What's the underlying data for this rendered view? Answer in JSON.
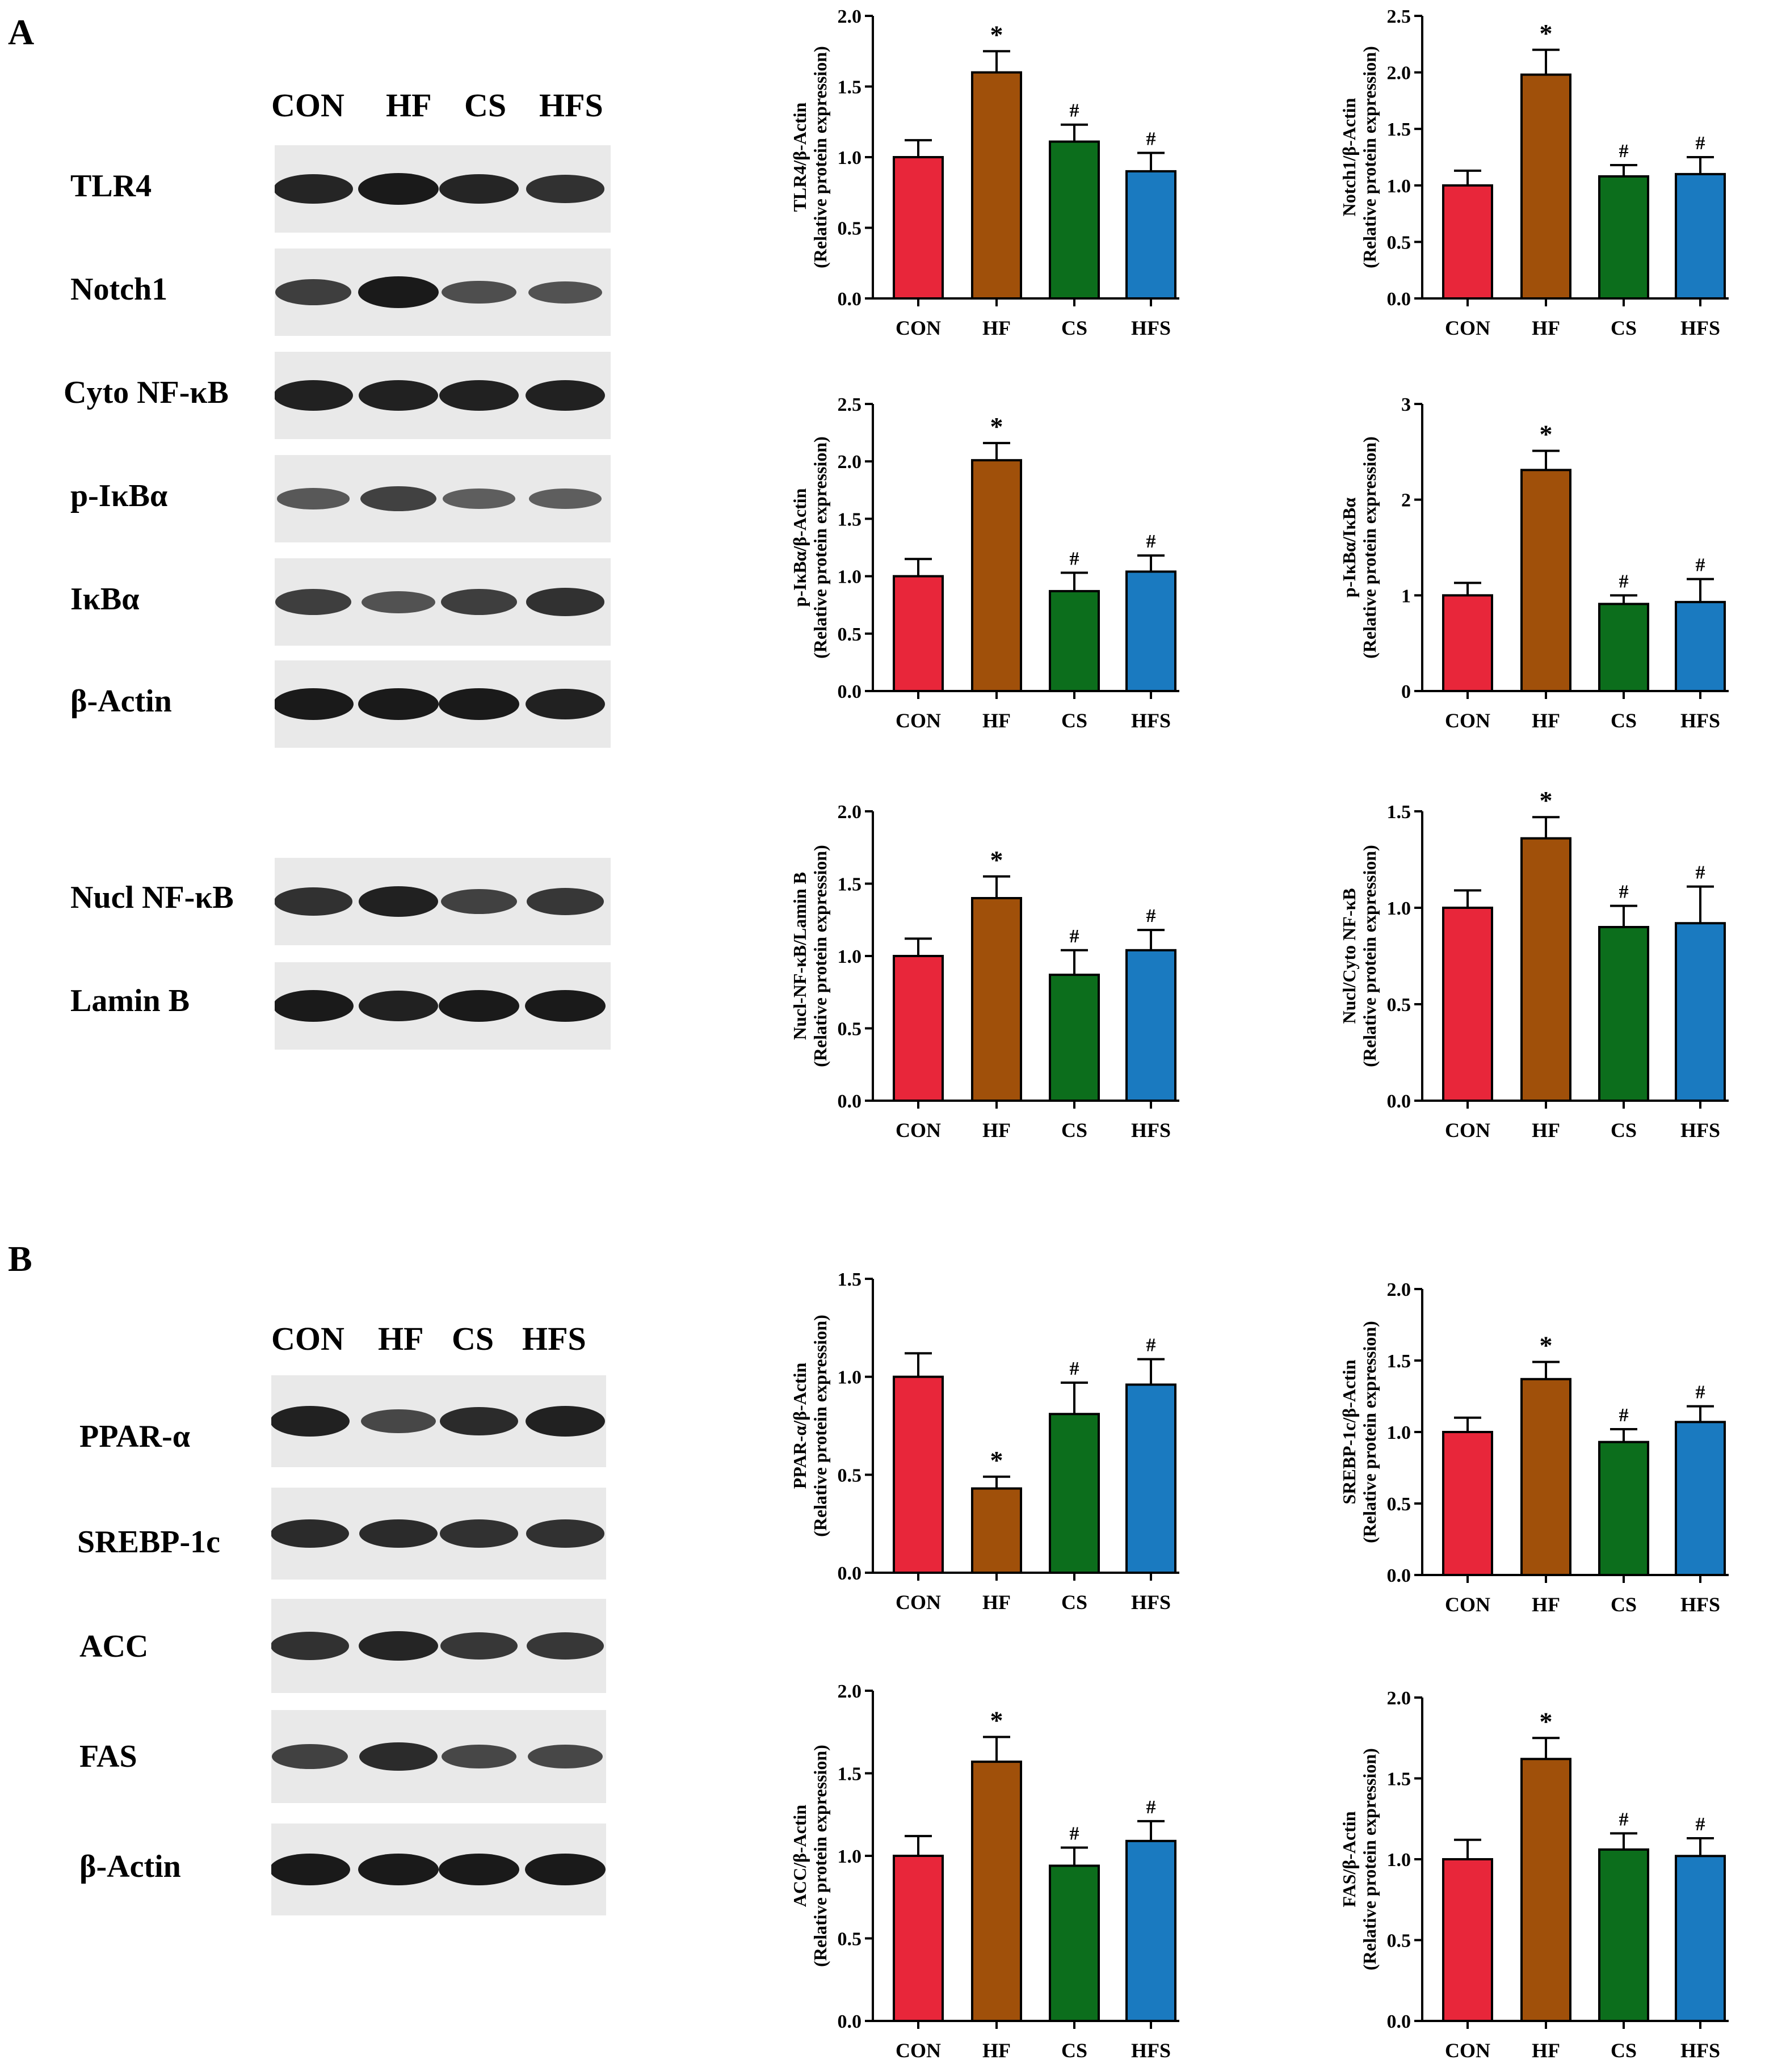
{
  "panels": {
    "a": "A",
    "b": "B"
  },
  "lanes": [
    "CON",
    "HF",
    "CS",
    "HFS"
  ],
  "panel_a": {
    "blot_rows": [
      "TLR4",
      "Notch1",
      "Cyto NF-κB",
      "p-IκBα",
      "IκBα",
      "β-Actin"
    ],
    "blot_rows_2": [
      "Nucl NF-κB",
      "Lamin B"
    ],
    "band_intensity": [
      [
        0.9,
        1.0,
        0.9,
        0.8
      ],
      [
        0.7,
        1.0,
        0.55,
        0.5
      ],
      [
        0.95,
        0.95,
        0.95,
        0.95
      ],
      [
        0.45,
        0.65,
        0.4,
        0.4
      ],
      [
        0.7,
        0.5,
        0.7,
        0.8
      ],
      [
        1.0,
        1.0,
        1.0,
        0.95
      ]
    ],
    "band_intensity_2": [
      [
        0.8,
        0.95,
        0.65,
        0.75
      ],
      [
        1.0,
        0.95,
        1.0,
        1.0
      ]
    ]
  },
  "panel_b": {
    "blot_rows": [
      "PPAR-α",
      "SREBP-1c",
      "ACC",
      "FAS",
      "β-Actin"
    ],
    "band_intensity": [
      [
        0.95,
        0.6,
        0.85,
        0.95
      ],
      [
        0.85,
        0.85,
        0.8,
        0.8
      ],
      [
        0.8,
        0.9,
        0.75,
        0.75
      ],
      [
        0.65,
        0.85,
        0.6,
        0.6
      ],
      [
        1.0,
        1.0,
        1.0,
        1.0
      ]
    ]
  },
  "colors": {
    "CON": "#e8263a",
    "HF": "#a0500a",
    "CS": "#0c6e1c",
    "HFS": "#1a7ac0"
  },
  "chart_data": [
    {
      "type": "bar",
      "ylabel": "TLR4/β-Actin",
      "ylabel2": "(Relative protein expression)",
      "categories": [
        "CON",
        "HF",
        "CS",
        "HFS"
      ],
      "values": [
        1.0,
        1.6,
        1.11,
        0.9
      ],
      "errors": [
        0.12,
        0.15,
        0.12,
        0.13
      ],
      "marks": [
        "",
        "*",
        "#",
        "#"
      ],
      "ylim": [
        0,
        2.0
      ],
      "yticks": [
        "0.0",
        "0.5",
        "1.0",
        "1.5",
        "2.0"
      ]
    },
    {
      "type": "bar",
      "ylabel": "Notch1/β-Actin",
      "ylabel2": "(Relative protein expression)",
      "categories": [
        "CON",
        "HF",
        "CS",
        "HFS"
      ],
      "values": [
        1.0,
        1.98,
        1.08,
        1.1
      ],
      "errors": [
        0.13,
        0.22,
        0.1,
        0.15
      ],
      "marks": [
        "",
        "*",
        "#",
        "#"
      ],
      "ylim": [
        0,
        2.5
      ],
      "yticks": [
        "0.0",
        "0.5",
        "1.0",
        "1.5",
        "2.0",
        "2.5"
      ]
    },
    {
      "type": "bar",
      "ylabel": "p-IκBα/β-Actin",
      "ylabel2": "(Relative protein expression)",
      "categories": [
        "CON",
        "HF",
        "CS",
        "HFS"
      ],
      "values": [
        1.0,
        2.01,
        0.87,
        1.04
      ],
      "errors": [
        0.15,
        0.15,
        0.16,
        0.14
      ],
      "marks": [
        "",
        "*",
        "#",
        "#"
      ],
      "ylim": [
        0,
        2.5
      ],
      "yticks": [
        "0.0",
        "0.5",
        "1.0",
        "1.5",
        "2.0",
        "2.5"
      ]
    },
    {
      "type": "bar",
      "ylabel": "p-IκBα/IκBα",
      "ylabel2": "(Relative protein expression)",
      "categories": [
        "CON",
        "HF",
        "CS",
        "HFS"
      ],
      "values": [
        1.0,
        2.31,
        0.91,
        0.93
      ],
      "errors": [
        0.13,
        0.2,
        0.09,
        0.24
      ],
      "marks": [
        "",
        "*",
        "#",
        "#"
      ],
      "ylim": [
        0,
        3
      ],
      "yticks": [
        "0",
        "1",
        "2",
        "3"
      ]
    },
    {
      "type": "bar",
      "ylabel": "Nucl-NF-κB/Lamin B",
      "ylabel2": "(Relative protein expression)",
      "categories": [
        "CON",
        "HF",
        "CS",
        "HFS"
      ],
      "values": [
        1.0,
        1.4,
        0.87,
        1.04
      ],
      "errors": [
        0.12,
        0.15,
        0.17,
        0.14
      ],
      "marks": [
        "",
        "*",
        "#",
        "#"
      ],
      "ylim": [
        0,
        2.0
      ],
      "yticks": [
        "0.0",
        "0.5",
        "1.0",
        "1.5",
        "2.0"
      ]
    },
    {
      "type": "bar",
      "ylabel": "Nucl/Cyto NF-κB",
      "ylabel2": "(Relative protein expression)",
      "categories": [
        "CON",
        "HF",
        "CS",
        "HFS"
      ],
      "values": [
        1.0,
        1.36,
        0.9,
        0.92
      ],
      "errors": [
        0.09,
        0.11,
        0.11,
        0.19
      ],
      "marks": [
        "",
        "*",
        "#",
        "#"
      ],
      "ylim": [
        0,
        1.5
      ],
      "yticks": [
        "0.0",
        "0.5",
        "1.0",
        "1.5"
      ]
    },
    {
      "type": "bar",
      "ylabel": "PPAR-α/β-Actin",
      "ylabel2": "(Relative protein expression)",
      "categories": [
        "CON",
        "HF",
        "CS",
        "HFS"
      ],
      "values": [
        1.0,
        0.43,
        0.81,
        0.96
      ],
      "errors": [
        0.12,
        0.06,
        0.16,
        0.13
      ],
      "marks": [
        "",
        "*",
        "#",
        "#"
      ],
      "ylim": [
        0,
        1.5
      ],
      "yticks": [
        "0.0",
        "0.5",
        "1.0",
        "1.5"
      ]
    },
    {
      "type": "bar",
      "ylabel": "SREBP-1c/β-Actin",
      "ylabel2": "(Relative protein expression)",
      "categories": [
        "CON",
        "HF",
        "CS",
        "HFS"
      ],
      "values": [
        1.0,
        1.37,
        0.93,
        1.07
      ],
      "errors": [
        0.1,
        0.12,
        0.09,
        0.11
      ],
      "marks": [
        "",
        "*",
        "#",
        "#"
      ],
      "ylim": [
        0,
        2.0
      ],
      "yticks": [
        "0.0",
        "0.5",
        "1.0",
        "1.5",
        "2.0"
      ]
    },
    {
      "type": "bar",
      "ylabel": "ACC/β-Actin",
      "ylabel2": "(Relative protein expression)",
      "categories": [
        "CON",
        "HF",
        "CS",
        "HFS"
      ],
      "values": [
        1.0,
        1.57,
        0.94,
        1.09
      ],
      "errors": [
        0.12,
        0.15,
        0.11,
        0.12
      ],
      "marks": [
        "",
        "*",
        "#",
        "#"
      ],
      "ylim": [
        0,
        2.0
      ],
      "yticks": [
        "0.0",
        "0.5",
        "1.0",
        "1.5",
        "2.0"
      ]
    },
    {
      "type": "bar",
      "ylabel": "FAS/β-Actin",
      "ylabel2": "(Relative protein expression)",
      "categories": [
        "CON",
        "HF",
        "CS",
        "HFS"
      ],
      "values": [
        1.0,
        1.62,
        1.06,
        1.02
      ],
      "errors": [
        0.12,
        0.13,
        0.1,
        0.11
      ],
      "marks": [
        "",
        "*",
        "#",
        "#"
      ],
      "ylim": [
        0,
        2.0
      ],
      "yticks": [
        "0.0",
        "0.5",
        "1.0",
        "1.5",
        "2.0"
      ]
    }
  ]
}
